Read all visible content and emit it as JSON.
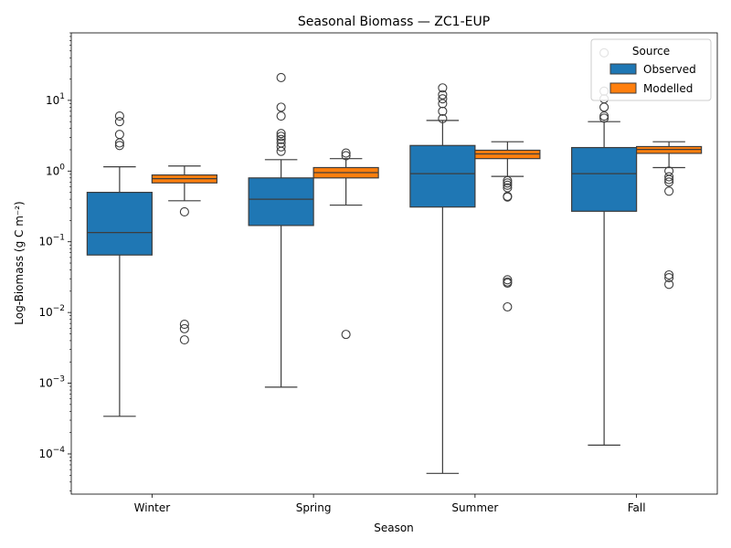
{
  "chart_data": {
    "type": "box",
    "title": "Seasonal Biomass — ZC1-EUP",
    "xlabel": "Season",
    "ylabel": "Log-Biomass (g C m⁻²)",
    "yscale": "log",
    "ylim": [
      2.7e-05,
      90
    ],
    "yticks": [
      {
        "value": 0.0001,
        "base": "10",
        "exp": "−4"
      },
      {
        "value": 0.001,
        "base": "10",
        "exp": "−3"
      },
      {
        "value": 0.01,
        "base": "10",
        "exp": "−2"
      },
      {
        "value": 0.1,
        "base": "10",
        "exp": "−1"
      },
      {
        "value": 1,
        "base": "10",
        "exp": "0"
      },
      {
        "value": 10,
        "base": "10",
        "exp": "1"
      }
    ],
    "categories": [
      "Winter",
      "Spring",
      "Summer",
      "Fall"
    ],
    "legend": {
      "title": "Source",
      "position": "upper right"
    },
    "series": [
      {
        "name": "Observed",
        "color": "#1f77b4",
        "boxes": [
          {
            "whislo": 0.00034,
            "q1": 0.065,
            "med": 0.135,
            "q3": 0.5,
            "whishi": 1.15,
            "fliers": [
              6.0,
              5.0,
              3.3,
              2.5,
              2.3
            ]
          },
          {
            "whislo": 0.00088,
            "q1": 0.17,
            "med": 0.4,
            "q3": 0.8,
            "whishi": 1.45,
            "fliers": [
              21,
              8.0,
              6.0,
              3.4,
              3.1,
              2.8,
              2.5,
              2.2,
              1.9
            ]
          },
          {
            "whislo": 5.3e-05,
            "q1": 0.31,
            "med": 0.92,
            "q3": 2.3,
            "whishi": 5.2,
            "fliers": [
              15,
              12,
              10.5,
              9.0,
              7.0,
              5.5
            ]
          },
          {
            "whislo": 0.000133,
            "q1": 0.27,
            "med": 0.92,
            "q3": 2.15,
            "whishi": 5.0,
            "fliers": [
              47,
              13.5,
              10.5,
              8.0,
              6.0,
              5.6
            ]
          }
        ]
      },
      {
        "name": "Modelled",
        "color": "#ff7f0e",
        "boxes": [
          {
            "whislo": 0.38,
            "q1": 0.68,
            "med": 0.78,
            "q3": 0.88,
            "whishi": 1.18,
            "fliers": [
              0.265,
              0.0068,
              0.0059,
              0.0041
            ]
          },
          {
            "whislo": 0.33,
            "q1": 0.8,
            "med": 0.95,
            "q3": 1.12,
            "whishi": 1.5,
            "fliers": [
              1.8,
              1.65,
              0.0049
            ]
          },
          {
            "whislo": 0.84,
            "q1": 1.5,
            "med": 1.75,
            "q3": 1.97,
            "whishi": 2.6,
            "fliers": [
              0.73,
              0.68,
              0.63,
              0.58,
              0.44,
              0.43,
              0.029,
              0.027,
              0.026,
              0.012
            ]
          },
          {
            "whislo": 1.12,
            "q1": 1.78,
            "med": 2.02,
            "q3": 2.22,
            "whishi": 2.6,
            "fliers": [
              1.0,
              0.83,
              0.76,
              0.7,
              0.52,
              0.034,
              0.031,
              0.025
            ]
          }
        ]
      }
    ]
  }
}
